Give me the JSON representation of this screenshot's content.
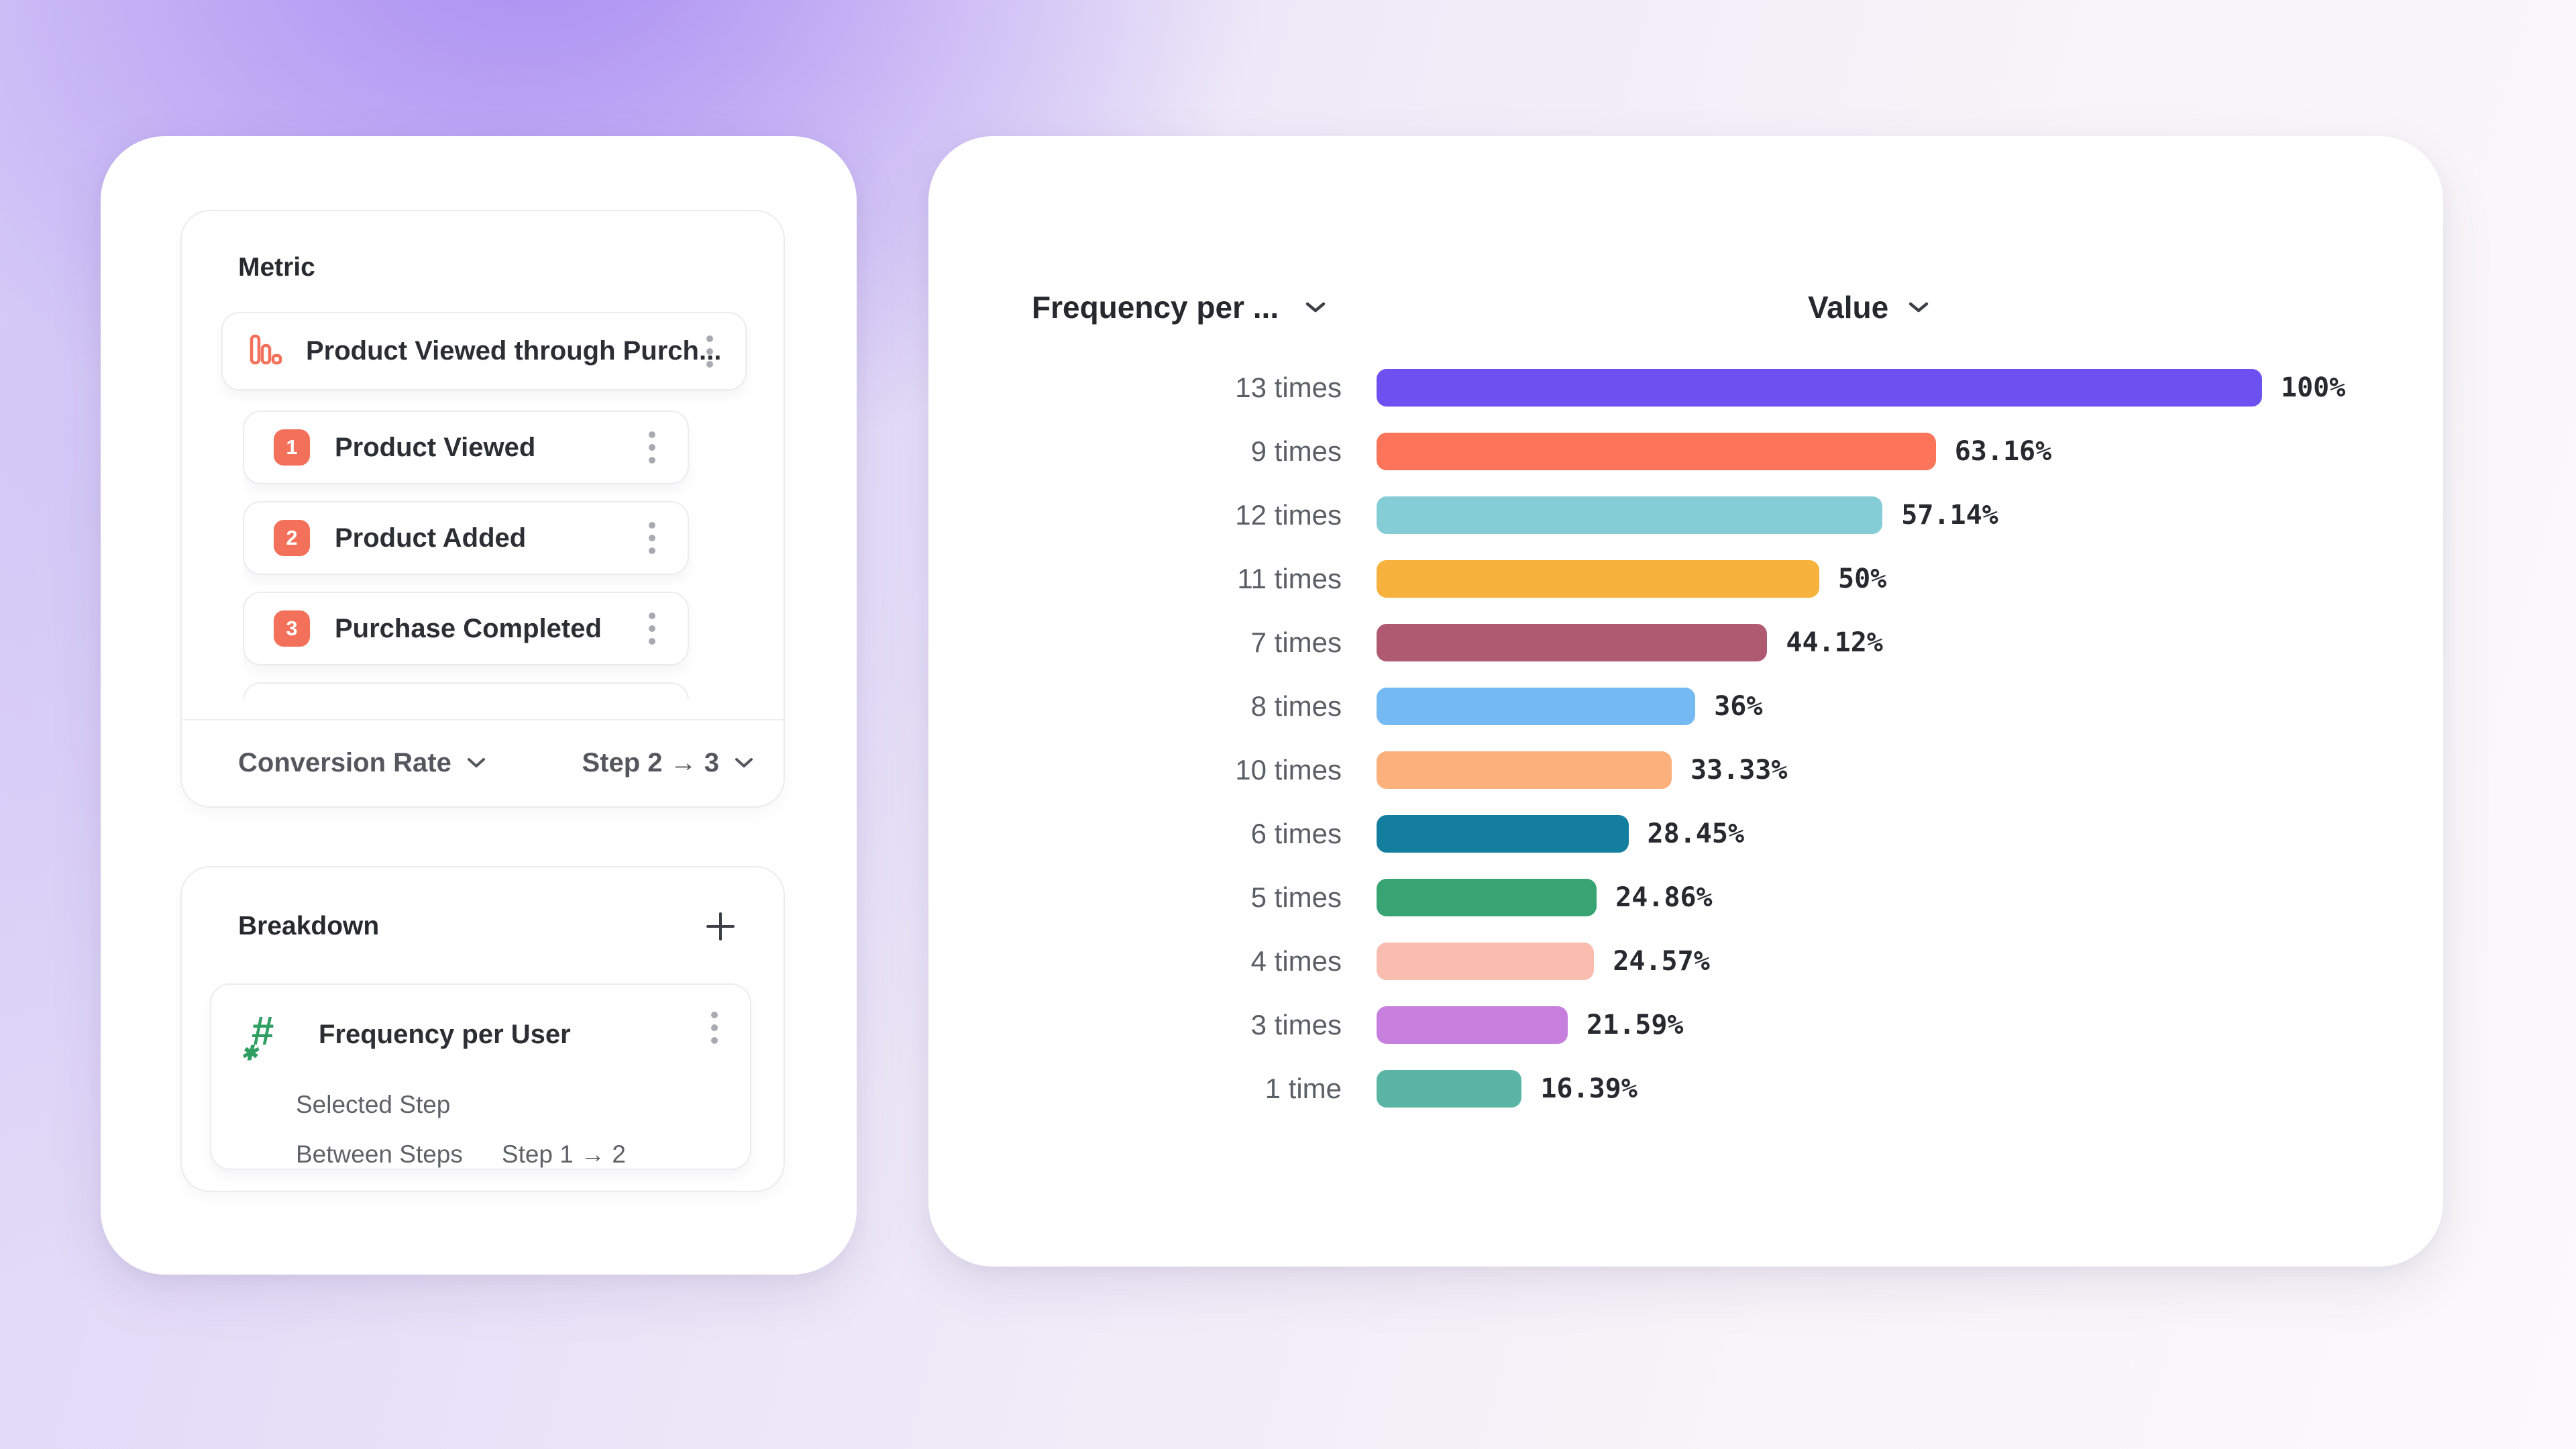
{
  "colors": {
    "accent_orange": "#F3705B",
    "accent_green": "#2F9E63",
    "title_text": "#26292E",
    "body_text": "#2B2E33",
    "muted_text": "#5F6368",
    "border": "#ECECEF"
  },
  "metric_panel": {
    "title": "Metric",
    "funnel": {
      "icon": "bar-chart-icon",
      "name": "Product Viewed through Purch...",
      "steps": [
        {
          "number": "1",
          "label": "Product Viewed"
        },
        {
          "number": "2",
          "label": "Product Added"
        },
        {
          "number": "3",
          "label": "Purchase Completed"
        }
      ]
    },
    "footer": {
      "measure_label": "Conversion Rate",
      "step_range_label": "Step 2 → 3"
    }
  },
  "breakdown_panel": {
    "title": "Breakdown",
    "add_icon": "plus-icon",
    "item": {
      "icon": "hash-icon",
      "label": "Frequency per User",
      "selected_step_label": "Selected Step",
      "between_steps_label": "Between Steps",
      "between_steps_value": "Step 1 → 2"
    }
  },
  "chart_panel": {
    "category_header": "Frequency per ...",
    "value_header": "Value"
  },
  "chart_data": {
    "type": "bar",
    "orientation": "horizontal",
    "title": "",
    "xlabel": "Value",
    "ylabel": "Frequency per ...",
    "xlim": [
      0,
      100
    ],
    "grid": false,
    "categories": [
      "13 times",
      "9 times",
      "12 times",
      "11 times",
      "7 times",
      "8 times",
      "10 times",
      "6 times",
      "5 times",
      "4 times",
      "3 times",
      "1 time"
    ],
    "values": [
      100,
      63.16,
      57.14,
      50,
      44.12,
      36,
      33.33,
      28.45,
      24.86,
      24.57,
      21.59,
      16.39
    ],
    "value_labels": [
      "100%",
      "63.16%",
      "57.14%",
      "50%",
      "44.12%",
      "36%",
      "33.33%",
      "28.45%",
      "24.86%",
      "24.57%",
      "21.59%",
      "16.39%"
    ],
    "bar_colors": [
      "#6C50F0",
      "#FC7459",
      "#85CDD6",
      "#F6B23C",
      "#AF5A70",
      "#74B9F2",
      "#FCB07C",
      "#147E9E",
      "#38A473",
      "#F8BDAF",
      "#C77FDE",
      "#5AB5A5"
    ]
  }
}
